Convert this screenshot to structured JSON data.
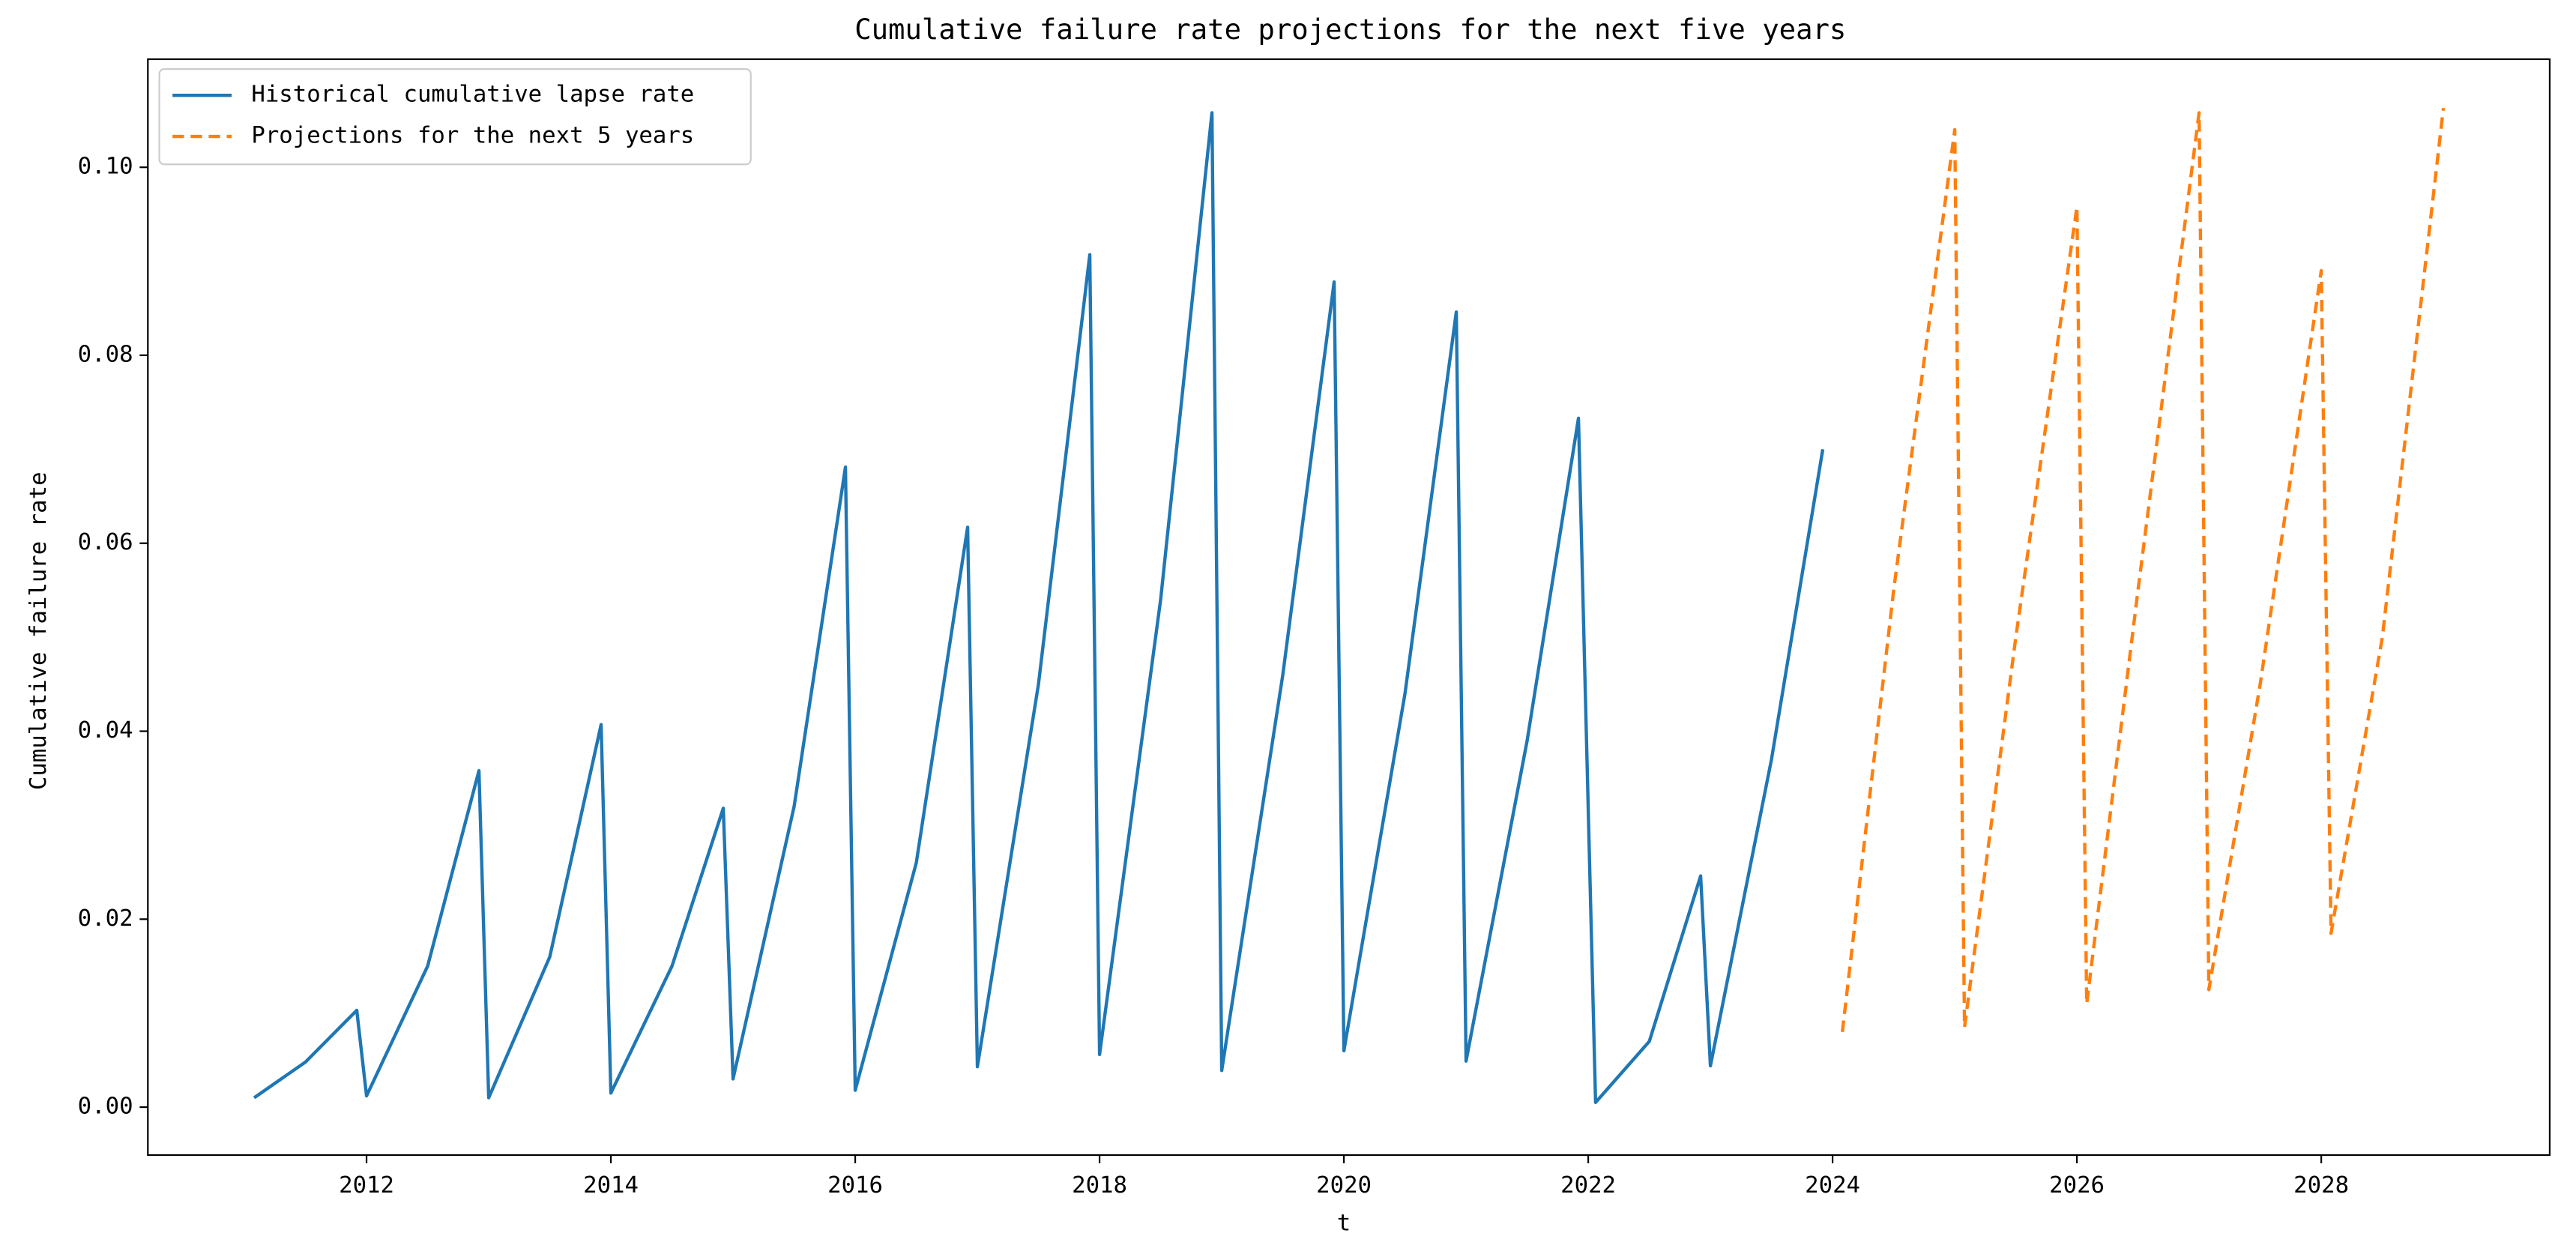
{
  "chart_data": {
    "type": "line",
    "title": "Cumulative failure rate projections for the next five years",
    "xlabel": "t",
    "ylabel": "Cumulative failure rate",
    "legend": "upper left",
    "grid": false,
    "xlim": [
      2010.21,
      2029.87
    ],
    "ylim": [
      -0.0051,
      0.1115
    ],
    "xticks": [
      2012,
      2014,
      2016,
      2018,
      2020,
      2022,
      2024,
      2026,
      2028
    ],
    "yticks": [
      {
        "value": 0,
        "label": "0.00"
      },
      {
        "value": 0.02,
        "label": "0.02"
      },
      {
        "value": 0.04,
        "label": "0.04"
      },
      {
        "value": 0.06,
        "label": "0.06"
      },
      {
        "value": 0.08,
        "label": "0.08"
      },
      {
        "value": 0.1,
        "label": "0.10"
      }
    ],
    "series": [
      {
        "name": "Historical cumulative lapse rate",
        "color": "#1f77b4",
        "dash": "solid",
        "x": [
          2011.08,
          2011.5,
          2011.92,
          2012.0,
          2012.5,
          2012.92,
          2013.0,
          2013.5,
          2013.92,
          2014.0,
          2014.5,
          2014.92,
          2015.0,
          2015.5,
          2015.92,
          2016.0,
          2016.5,
          2016.92,
          2017.0,
          2017.5,
          2017.92,
          2018.0,
          2018.5,
          2018.92,
          2019.0,
          2019.5,
          2019.92,
          2020.0,
          2020.5,
          2020.92,
          2021.0,
          2021.5,
          2021.92,
          2022.06,
          2022.5,
          2022.92,
          2023.0,
          2023.5,
          2023.92
        ],
        "values": [
          0.001,
          0.0048,
          0.0103,
          0.0012,
          0.015,
          0.0358,
          0.001,
          0.016,
          0.0407,
          0.0015,
          0.015,
          0.0318,
          0.003,
          0.032,
          0.0681,
          0.0018,
          0.026,
          0.0617,
          0.0043,
          0.045,
          0.0907,
          0.0056,
          0.054,
          0.1058,
          0.0039,
          0.046,
          0.0878,
          0.006,
          0.044,
          0.0846,
          0.0049,
          0.039,
          0.0733,
          0.0005,
          0.007,
          0.0246,
          0.0044,
          0.037,
          0.07
        ]
      },
      {
        "name": "Projections for the next 5 years",
        "color": "#ff7f0e",
        "dash": "dashed",
        "x": [
          2024.08,
          2024.5,
          2025.0,
          2025.08,
          2025.5,
          2026.0,
          2026.08,
          2026.5,
          2027.0,
          2027.08,
          2027.5,
          2028.0,
          2028.08,
          2028.5,
          2029.0
        ],
        "values": [
          0.008,
          0.055,
          0.104,
          0.0085,
          0.05,
          0.0958,
          0.011,
          0.055,
          0.1058,
          0.0125,
          0.045,
          0.089,
          0.0185,
          0.05,
          0.1063
        ]
      }
    ]
  }
}
